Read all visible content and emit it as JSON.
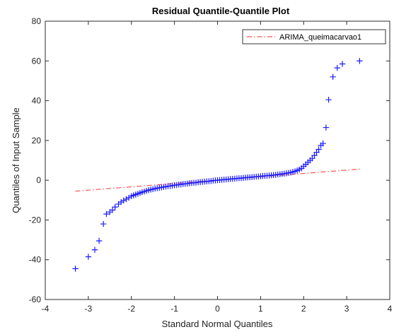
{
  "chart_data": {
    "type": "scatter",
    "title": "Residual Quantile-Quantile Plot",
    "xlabel": "Standard Normal Quantiles",
    "ylabel": "Quantiles of Input Sample",
    "xlim": [
      -4,
      4
    ],
    "ylim": [
      -60,
      80
    ],
    "x_ticks": [
      -4,
      -3,
      -2,
      -1,
      0,
      1,
      2,
      3,
      4
    ],
    "y_ticks": [
      -60,
      -40,
      -20,
      0,
      20,
      40,
      60,
      80
    ],
    "grid": false,
    "legend_placement": "top-right",
    "marker": "+",
    "marker_color": "#1a1aff",
    "reference_line": {
      "name": "ARIMA_queimacarvao1",
      "style": "dash-dot",
      "color": "#ff5555",
      "points": [
        [
          -3.3,
          -5.5
        ],
        [
          3.3,
          5.6
        ]
      ]
    },
    "series": [
      {
        "points": [
          [
            -3.3,
            -44.5
          ],
          [
            -3.0,
            -38.5
          ],
          [
            -2.85,
            -35.0
          ],
          [
            -2.75,
            -30.5
          ],
          [
            -2.65,
            -22.0
          ],
          [
            -2.58,
            -17.0
          ],
          [
            -2.5,
            -16.0
          ],
          [
            -2.44,
            -15.0
          ],
          [
            -2.38,
            -13.5
          ],
          [
            -2.3,
            -12.0
          ],
          [
            -2.24,
            -11.0
          ],
          [
            -2.18,
            -10.2
          ],
          [
            -2.12,
            -9.5
          ],
          [
            -2.06,
            -8.8
          ],
          [
            -2.0,
            -8.0
          ],
          [
            -1.95,
            -7.6
          ],
          [
            -1.9,
            -7.2
          ],
          [
            -1.85,
            -6.8
          ],
          [
            -1.8,
            -6.4
          ],
          [
            -1.75,
            -6.0
          ],
          [
            -1.7,
            -5.7
          ],
          [
            -1.65,
            -5.3
          ],
          [
            -1.6,
            -5.0
          ],
          [
            -1.55,
            -4.7
          ],
          [
            -1.5,
            -4.5
          ],
          [
            -1.45,
            -4.2
          ],
          [
            -1.4,
            -4.0
          ],
          [
            -1.35,
            -3.8
          ],
          [
            -1.3,
            -3.6
          ],
          [
            -1.25,
            -3.4
          ],
          [
            -1.2,
            -3.2
          ],
          [
            -1.15,
            -3.0
          ],
          [
            -1.1,
            -2.9
          ],
          [
            -1.05,
            -2.7
          ],
          [
            -1.0,
            -2.5
          ],
          [
            -0.95,
            -2.4
          ],
          [
            -0.9,
            -2.2
          ],
          [
            -0.85,
            -2.1
          ],
          [
            -0.8,
            -1.9
          ],
          [
            -0.75,
            -1.8
          ],
          [
            -0.7,
            -1.7
          ],
          [
            -0.65,
            -1.5
          ],
          [
            -0.6,
            -1.4
          ],
          [
            -0.55,
            -1.3
          ],
          [
            -0.5,
            -1.2
          ],
          [
            -0.45,
            -1.0
          ],
          [
            -0.4,
            -0.9
          ],
          [
            -0.35,
            -0.8
          ],
          [
            -0.3,
            -0.7
          ],
          [
            -0.25,
            -0.6
          ],
          [
            -0.2,
            -0.5
          ],
          [
            -0.15,
            -0.4
          ],
          [
            -0.1,
            -0.2
          ],
          [
            -0.05,
            -0.1
          ],
          [
            0.0,
            0.0
          ],
          [
            0.05,
            0.1
          ],
          [
            0.1,
            0.2
          ],
          [
            0.15,
            0.3
          ],
          [
            0.2,
            0.4
          ],
          [
            0.25,
            0.5
          ],
          [
            0.3,
            0.6
          ],
          [
            0.35,
            0.7
          ],
          [
            0.4,
            0.8
          ],
          [
            0.45,
            0.9
          ],
          [
            0.5,
            1.0
          ],
          [
            0.55,
            1.1
          ],
          [
            0.6,
            1.2
          ],
          [
            0.65,
            1.3
          ],
          [
            0.7,
            1.4
          ],
          [
            0.75,
            1.5
          ],
          [
            0.8,
            1.6
          ],
          [
            0.85,
            1.7
          ],
          [
            0.9,
            1.8
          ],
          [
            0.95,
            1.9
          ],
          [
            1.0,
            2.0
          ],
          [
            1.05,
            2.1
          ],
          [
            1.1,
            2.2
          ],
          [
            1.15,
            2.3
          ],
          [
            1.2,
            2.4
          ],
          [
            1.25,
            2.5
          ],
          [
            1.3,
            2.6
          ],
          [
            1.35,
            2.7
          ],
          [
            1.4,
            2.9
          ],
          [
            1.45,
            3.0
          ],
          [
            1.5,
            3.2
          ],
          [
            1.55,
            3.3
          ],
          [
            1.6,
            3.5
          ],
          [
            1.65,
            3.7
          ],
          [
            1.7,
            3.9
          ],
          [
            1.75,
            4.2
          ],
          [
            1.8,
            4.5
          ],
          [
            1.85,
            4.9
          ],
          [
            1.9,
            5.4
          ],
          [
            1.95,
            6.0
          ],
          [
            2.0,
            7.0
          ],
          [
            2.05,
            8.0
          ],
          [
            2.1,
            9.0
          ],
          [
            2.15,
            10.0
          ],
          [
            2.2,
            11.0
          ],
          [
            2.25,
            12.5
          ],
          [
            2.3,
            14.0
          ],
          [
            2.35,
            15.5
          ],
          [
            2.4,
            17.5
          ],
          [
            2.45,
            18.5
          ],
          [
            2.52,
            26.5
          ],
          [
            2.58,
            40.5
          ],
          [
            2.68,
            52.0
          ],
          [
            2.78,
            56.5
          ],
          [
            2.9,
            58.5
          ],
          [
            3.3,
            60.0
          ]
        ]
      }
    ]
  }
}
